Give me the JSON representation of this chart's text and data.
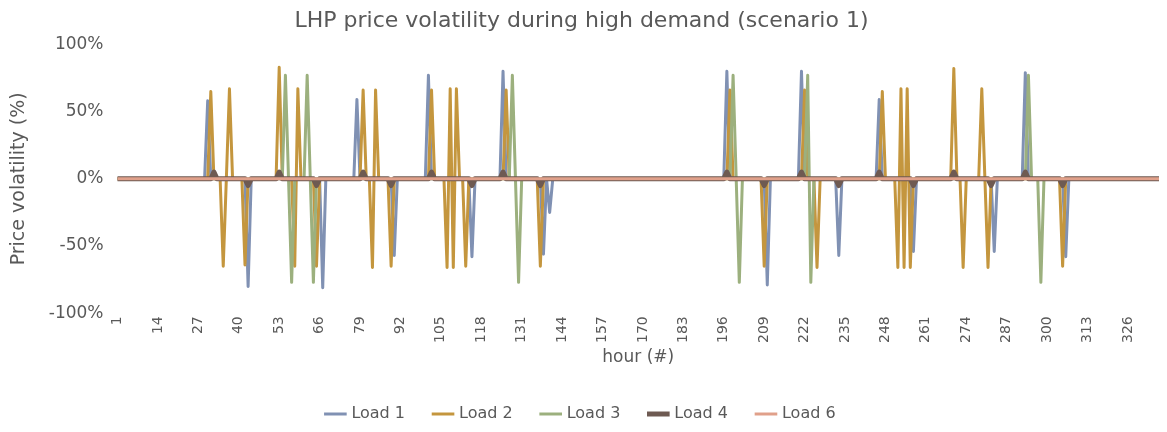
{
  "chart_data": {
    "type": "line",
    "title": "LHP price volatility during high demand (scenario 1)",
    "xlabel": "hour (#)",
    "ylabel": "Price volatility (%)",
    "xlim": [
      1,
      336
    ],
    "xticks": [
      1,
      14,
      27,
      40,
      53,
      66,
      79,
      92,
      105,
      118,
      131,
      144,
      157,
      170,
      183,
      196,
      209,
      222,
      235,
      248,
      261,
      274,
      287,
      300,
      313,
      326
    ],
    "ylim": [
      -100,
      100
    ],
    "yticks": [
      {
        "value": -100,
        "label": "-100%"
      },
      {
        "value": -50,
        "label": "-50%"
      },
      {
        "value": 0,
        "label": "0%"
      },
      {
        "value": 50,
        "label": "50%"
      },
      {
        "value": 100,
        "label": "100%"
      }
    ],
    "grid": false,
    "legend": "bottom",
    "marker": "none",
    "line_style": "solid",
    "series": [
      {
        "name": "Load 1",
        "color": "#8091b3",
        "x": [
          1,
          29,
          30,
          31,
          42,
          43,
          44,
          66,
          67,
          68,
          77,
          78,
          79,
          89,
          90,
          91,
          100,
          101,
          102,
          114,
          115,
          116,
          124,
          125,
          126,
          137,
          138,
          139,
          140,
          141,
          196,
          197,
          198,
          209,
          210,
          211,
          220,
          221,
          222,
          232,
          233,
          234,
          245,
          246,
          247,
          256,
          257,
          258,
          282,
          283,
          284,
          292,
          293,
          294,
          305,
          306,
          307,
          336
        ],
        "values": [
          0,
          0,
          58,
          0,
          0,
          -80,
          0,
          0,
          -81,
          0,
          0,
          59,
          0,
          0,
          -57,
          0,
          0,
          77,
          0,
          0,
          -58,
          0,
          0,
          80,
          0,
          0,
          -56,
          0,
          -25,
          0,
          0,
          80,
          0,
          0,
          -79,
          0,
          0,
          80,
          0,
          0,
          -57,
          0,
          0,
          59,
          0,
          0,
          -54,
          0,
          0,
          -54,
          0,
          0,
          79,
          0,
          0,
          -58,
          0,
          0
        ]
      },
      {
        "name": "Load 2",
        "color": "#c4963e",
        "x": [
          1,
          30,
          31,
          32,
          34,
          35,
          36,
          37,
          38,
          41,
          42,
          43,
          52,
          53,
          54,
          57,
          58,
          59,
          60,
          64,
          65,
          66,
          79,
          80,
          81,
          82,
          83,
          84,
          85,
          88,
          89,
          90,
          101,
          102,
          103,
          106,
          107,
          108,
          109,
          110,
          111,
          112,
          113,
          114,
          125,
          126,
          127,
          136,
          137,
          138,
          197,
          198,
          199,
          208,
          209,
          210,
          221,
          222,
          223,
          225,
          226,
          227,
          246,
          247,
          248,
          251,
          252,
          253,
          254,
          255,
          256,
          257,
          269,
          270,
          271,
          272,
          273,
          274,
          278,
          279,
          280,
          281,
          282,
          304,
          305,
          306,
          336
        ],
        "values": [
          0,
          0,
          65,
          0,
          0,
          -65,
          0,
          67,
          0,
          0,
          -64,
          0,
          0,
          83,
          0,
          0,
          -65,
          67,
          0,
          0,
          -65,
          0,
          0,
          66,
          0,
          0,
          -66,
          66,
          0,
          0,
          -65,
          0,
          0,
          66,
          0,
          0,
          -66,
          67,
          -66,
          67,
          0,
          0,
          -65,
          0,
          0,
          66,
          0,
          0,
          -65,
          0,
          0,
          66,
          0,
          0,
          -65,
          0,
          0,
          66,
          0,
          0,
          -66,
          0,
          0,
          65,
          0,
          0,
          -66,
          67,
          -66,
          67,
          -66,
          0,
          0,
          82,
          0,
          0,
          -66,
          0,
          0,
          67,
          0,
          -66,
          0,
          0,
          -65,
          0,
          0
        ]
      },
      {
        "name": "Load 3",
        "color": "#9cb07e",
        "x": [
          1,
          54,
          55,
          56,
          57,
          58,
          61,
          62,
          63,
          64,
          65,
          127,
          128,
          129,
          130,
          131,
          198,
          199,
          200,
          201,
          202,
          222,
          223,
          224,
          225,
          293,
          294,
          295,
          297,
          298,
          299,
          336
        ],
        "values": [
          0,
          0,
          77,
          0,
          -77,
          0,
          0,
          77,
          0,
          -77,
          0,
          0,
          77,
          0,
          -77,
          0,
          0,
          77,
          0,
          -77,
          0,
          0,
          77,
          -77,
          0,
          0,
          77,
          0,
          0,
          -77,
          0,
          0
        ]
      },
      {
        "name": "Load 4",
        "color": "#6e5a52",
        "x": [
          1,
          31,
          32,
          33,
          42,
          43,
          44,
          52,
          53,
          54,
          64,
          65,
          66,
          79,
          80,
          81,
          88,
          89,
          90,
          101,
          102,
          103,
          114,
          115,
          116,
          124,
          125,
          126,
          136,
          137,
          138,
          196,
          197,
          198,
          208,
          209,
          210,
          220,
          221,
          222,
          232,
          233,
          234,
          245,
          246,
          247,
          256,
          257,
          258,
          269,
          270,
          271,
          281,
          282,
          283,
          292,
          293,
          294,
          304,
          305,
          306,
          336
        ],
        "values": [
          0,
          0,
          5,
          0,
          0,
          -5,
          0,
          0,
          5,
          0,
          0,
          -5,
          0,
          0,
          5,
          0,
          0,
          -5,
          0,
          0,
          5,
          0,
          0,
          -5,
          0,
          0,
          5,
          0,
          0,
          -5,
          0,
          0,
          5,
          0,
          0,
          -5,
          0,
          0,
          5,
          0,
          0,
          -5,
          0,
          0,
          5,
          0,
          0,
          -5,
          0,
          0,
          5,
          0,
          0,
          -5,
          0,
          0,
          5,
          0,
          0,
          -5,
          0,
          0
        ]
      },
      {
        "name": "Load 6",
        "color": "#e0a08a",
        "x": [
          1,
          336
        ],
        "values": [
          0,
          0
        ]
      }
    ]
  }
}
